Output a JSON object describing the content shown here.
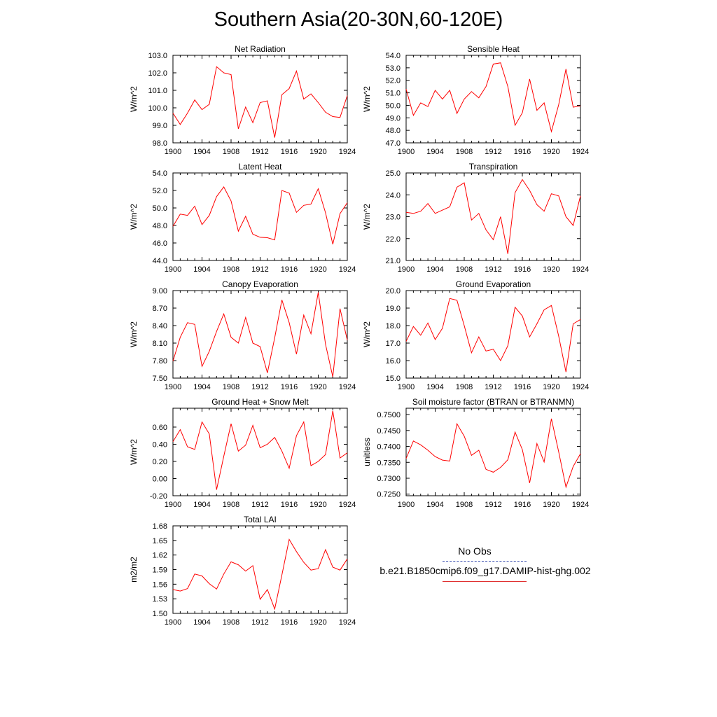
{
  "title": "Southern Asia(20-30N,60-120E)",
  "series_color": "#ff0000",
  "legend": {
    "obs_label": "No Obs",
    "model_label": "b.e21.B1850cmip6.f09_g17.DAMIP-hist-ghg.002"
  },
  "chart_data": [
    {
      "type": "line",
      "title": "Net Radiation",
      "ylabel": "W/m^2",
      "xlim": [
        1900,
        1924
      ],
      "xticks": [
        1900,
        1904,
        1908,
        1912,
        1916,
        1920,
        1924
      ],
      "ylim": [
        98.0,
        103.0
      ],
      "yticks": [
        "98.0",
        "99.0",
        "100.0",
        "101.0",
        "102.0",
        "103.0"
      ],
      "x": [
        1900,
        1901,
        1902,
        1903,
        1904,
        1905,
        1906,
        1907,
        1908,
        1909,
        1910,
        1911,
        1912,
        1913,
        1914,
        1915,
        1916,
        1917,
        1918,
        1919,
        1920,
        1921,
        1922,
        1923,
        1924
      ],
      "values": [
        99.7,
        99.05,
        99.7,
        100.45,
        99.9,
        100.2,
        102.35,
        102.0,
        101.9,
        98.8,
        100.05,
        99.15,
        100.3,
        100.4,
        98.3,
        100.75,
        101.1,
        102.1,
        100.5,
        100.8,
        100.3,
        99.75,
        99.5,
        99.45,
        100.7
      ]
    },
    {
      "type": "line",
      "title": "Sensible Heat",
      "ylabel": "W/m^2",
      "xlim": [
        1900,
        1924
      ],
      "xticks": [
        1900,
        1904,
        1908,
        1912,
        1916,
        1920,
        1924
      ],
      "ylim": [
        47.0,
        54.0
      ],
      "yticks": [
        "47.0",
        "48.0",
        "49.0",
        "50.0",
        "51.0",
        "52.0",
        "53.0",
        "54.0"
      ],
      "x": [
        1900,
        1901,
        1902,
        1903,
        1904,
        1905,
        1906,
        1907,
        1908,
        1909,
        1910,
        1911,
        1912,
        1913,
        1914,
        1915,
        1916,
        1917,
        1918,
        1919,
        1920,
        1921,
        1922,
        1923,
        1924
      ],
      "values": [
        51.3,
        49.2,
        50.2,
        49.9,
        51.2,
        50.5,
        51.2,
        49.35,
        50.5,
        51.1,
        50.6,
        51.5,
        53.3,
        53.4,
        51.5,
        48.4,
        49.4,
        52.1,
        49.6,
        50.2,
        47.9,
        50.05,
        52.9,
        49.85,
        49.95
      ]
    },
    {
      "type": "line",
      "title": "Latent Heat",
      "ylabel": "W/m^2",
      "xlim": [
        1900,
        1924
      ],
      "xticks": [
        1900,
        1904,
        1908,
        1912,
        1916,
        1920,
        1924
      ],
      "ylim": [
        44.0,
        54.0
      ],
      "yticks": [
        "44.0",
        "46.0",
        "48.0",
        "50.0",
        "52.0",
        "54.0"
      ],
      "x": [
        1900,
        1901,
        1902,
        1903,
        1904,
        1905,
        1906,
        1907,
        1908,
        1909,
        1910,
        1911,
        1912,
        1913,
        1914,
        1915,
        1916,
        1917,
        1918,
        1919,
        1920,
        1921,
        1922,
        1923,
        1924
      ],
      "values": [
        47.9,
        49.3,
        49.15,
        50.2,
        48.1,
        49.15,
        51.3,
        52.4,
        50.8,
        47.35,
        49.05,
        47.0,
        46.65,
        46.6,
        46.35,
        52.0,
        51.7,
        49.5,
        50.3,
        50.45,
        52.2,
        49.45,
        45.85,
        49.35,
        50.6
      ]
    },
    {
      "type": "line",
      "title": "Transpiration",
      "ylabel": "W/m^2",
      "xlim": [
        1900,
        1924
      ],
      "xticks": [
        1900,
        1904,
        1908,
        1912,
        1916,
        1920,
        1924
      ],
      "ylim": [
        21.0,
        25.0
      ],
      "yticks": [
        "21.0",
        "22.0",
        "23.0",
        "24.0",
        "25.0"
      ],
      "x": [
        1900,
        1901,
        1902,
        1903,
        1904,
        1905,
        1906,
        1907,
        1908,
        1909,
        1910,
        1911,
        1912,
        1913,
        1914,
        1915,
        1916,
        1917,
        1918,
        1919,
        1920,
        1921,
        1922,
        1923,
        1924
      ],
      "values": [
        23.2,
        23.15,
        23.25,
        23.6,
        23.15,
        23.3,
        23.45,
        24.35,
        24.55,
        22.85,
        23.15,
        22.4,
        21.95,
        23.0,
        21.3,
        24.1,
        24.7,
        24.2,
        23.55,
        23.25,
        24.05,
        23.95,
        23.0,
        22.6,
        23.95
      ]
    },
    {
      "type": "line",
      "title": "Canopy Evaporation",
      "ylabel": "W/m^2",
      "xlim": [
        1900,
        1924
      ],
      "xticks": [
        1900,
        1904,
        1908,
        1912,
        1916,
        1920,
        1924
      ],
      "ylim": [
        7.5,
        9.0
      ],
      "yticks": [
        "7.50",
        "7.80",
        "8.10",
        "8.40",
        "8.70",
        "9.00"
      ],
      "x": [
        1900,
        1901,
        1902,
        1903,
        1904,
        1905,
        1906,
        1907,
        1908,
        1909,
        1910,
        1911,
        1912,
        1913,
        1914,
        1915,
        1916,
        1917,
        1918,
        1919,
        1920,
        1921,
        1922,
        1923,
        1924
      ],
      "values": [
        7.79,
        8.2,
        8.45,
        8.42,
        7.7,
        7.96,
        8.3,
        8.6,
        8.2,
        8.1,
        8.54,
        8.1,
        8.04,
        7.59,
        8.19,
        8.84,
        8.45,
        7.91,
        8.58,
        8.26,
        8.97,
        8.08,
        7.52,
        8.69,
        8.15
      ]
    },
    {
      "type": "line",
      "title": "Ground Evaporation",
      "ylabel": "W/m^2",
      "xlim": [
        1900,
        1924
      ],
      "xticks": [
        1900,
        1904,
        1908,
        1912,
        1916,
        1920,
        1924
      ],
      "ylim": [
        15.0,
        20.0
      ],
      "yticks": [
        "15.0",
        "16.0",
        "17.0",
        "18.0",
        "19.0",
        "20.0"
      ],
      "x": [
        1900,
        1901,
        1902,
        1903,
        1904,
        1905,
        1906,
        1907,
        1908,
        1909,
        1910,
        1911,
        1912,
        1913,
        1914,
        1915,
        1916,
        1917,
        1918,
        1919,
        1920,
        1921,
        1922,
        1923,
        1924
      ],
      "values": [
        17.1,
        17.95,
        17.45,
        18.15,
        17.2,
        17.85,
        19.55,
        19.45,
        18.0,
        16.45,
        17.35,
        16.55,
        16.65,
        16.0,
        16.85,
        19.05,
        18.55,
        17.35,
        18.1,
        18.9,
        19.15,
        17.4,
        15.35,
        18.1,
        18.35
      ]
    },
    {
      "type": "line",
      "title": "Ground Heat + Snow Melt",
      "ylabel": "W/m^2",
      "xlim": [
        1900,
        1924
      ],
      "xticks": [
        1900,
        1904,
        1908,
        1912,
        1916,
        1920,
        1924
      ],
      "ylim": [
        -0.2,
        0.82
      ],
      "yticks": [
        "-0.20",
        "0.00",
        "0.20",
        "0.40",
        "0.60"
      ],
      "ytick_values": [
        -0.2,
        0.0,
        0.2,
        0.4,
        0.6
      ],
      "x": [
        1900,
        1901,
        1902,
        1903,
        1904,
        1905,
        1906,
        1907,
        1908,
        1909,
        1910,
        1911,
        1912,
        1913,
        1914,
        1915,
        1916,
        1917,
        1918,
        1919,
        1920,
        1921,
        1922,
        1923,
        1924
      ],
      "values": [
        0.43,
        0.57,
        0.37,
        0.34,
        0.66,
        0.52,
        -0.13,
        0.26,
        0.64,
        0.32,
        0.39,
        0.62,
        0.36,
        0.4,
        0.48,
        0.32,
        0.12,
        0.5,
        0.66,
        0.15,
        0.2,
        0.28,
        0.79,
        0.24,
        0.3
      ]
    },
    {
      "type": "line",
      "title": "Soil moisture factor (BTRAN or BTRANMN)",
      "ylabel": "unitless",
      "xlim": [
        1900,
        1924
      ],
      "xticks": [
        1900,
        1904,
        1908,
        1912,
        1916,
        1920,
        1924
      ],
      "ylim": [
        0.7245,
        0.752
      ],
      "yticks": [
        "0.7250",
        "0.7300",
        "0.7350",
        "0.7400",
        "0.7450",
        "0.7500"
      ],
      "ytick_values": [
        0.725,
        0.73,
        0.735,
        0.74,
        0.745,
        0.75
      ],
      "x": [
        1900,
        1901,
        1902,
        1903,
        1904,
        1905,
        1906,
        1907,
        1908,
        1909,
        1910,
        1911,
        1912,
        1913,
        1914,
        1915,
        1916,
        1917,
        1918,
        1919,
        1920,
        1921,
        1922,
        1923,
        1924
      ],
      "values": [
        0.7362,
        0.7417,
        0.7405,
        0.7388,
        0.7368,
        0.7357,
        0.7354,
        0.7471,
        0.7432,
        0.7372,
        0.7388,
        0.7328,
        0.7319,
        0.7334,
        0.7358,
        0.7445,
        0.739,
        0.7285,
        0.7409,
        0.7351,
        0.7487,
        0.7383,
        0.7272,
        0.7337,
        0.7377
      ]
    },
    {
      "type": "line",
      "title": "Total LAI",
      "ylabel": "m2/m2",
      "xlim": [
        1900,
        1924
      ],
      "xticks": [
        1900,
        1904,
        1908,
        1912,
        1916,
        1920,
        1924
      ],
      "ylim": [
        1.5,
        1.68
      ],
      "yticks": [
        "1.50",
        "1.53",
        "1.56",
        "1.59",
        "1.62",
        "1.65",
        "1.68"
      ],
      "x": [
        1900,
        1901,
        1902,
        1903,
        1904,
        1905,
        1906,
        1907,
        1908,
        1909,
        1910,
        1911,
        1912,
        1913,
        1914,
        1915,
        1916,
        1917,
        1918,
        1919,
        1920,
        1921,
        1922,
        1923,
        1924
      ],
      "values": [
        1.549,
        1.546,
        1.551,
        1.581,
        1.577,
        1.561,
        1.55,
        1.581,
        1.606,
        1.6,
        1.587,
        1.598,
        1.529,
        1.549,
        1.509,
        1.579,
        1.652,
        1.627,
        1.605,
        1.589,
        1.592,
        1.631,
        1.595,
        1.589,
        1.612
      ]
    }
  ]
}
